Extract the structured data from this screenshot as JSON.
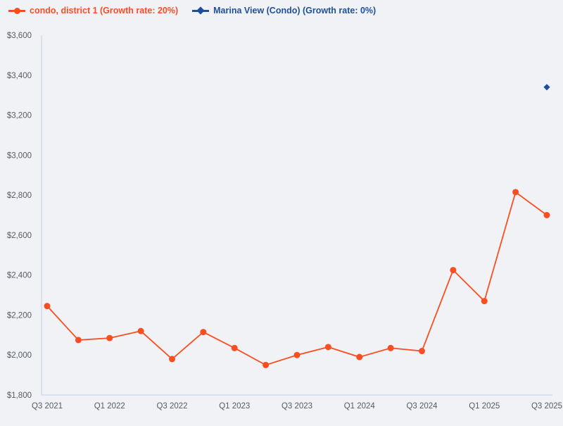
{
  "page": {
    "background_color": "#f0f2f5"
  },
  "legend": {
    "items": [
      {
        "label": "condo, district 1 (Growth rate: 20%)",
        "color": "#f94e22",
        "marker": "circle"
      },
      {
        "label": "Marina View (Condo) (Growth rate: 0%)",
        "color": "#1e4f9c",
        "marker": "diamond"
      }
    ]
  },
  "chart_data": {
    "type": "line",
    "x": [
      "Q3 2021",
      "Q4 2021",
      "Q1 2022",
      "Q2 2022",
      "Q3 2022",
      "Q4 2022",
      "Q1 2023",
      "Q2 2023",
      "Q3 2023",
      "Q4 2023",
      "Q1 2024",
      "Q2 2024",
      "Q3 2024",
      "Q4 2024",
      "Q1 2025",
      "Q2 2025",
      "Q3 2025"
    ],
    "x_tick_labels": [
      "Q3 2021",
      "Q1 2022",
      "Q3 2022",
      "Q1 2023",
      "Q3 2023",
      "Q1 2024",
      "Q3 2024",
      "Q1 2025",
      "Q3 2025"
    ],
    "x_tick_every": 2,
    "series": [
      {
        "name": "condo, district 1",
        "growth_rate": "20%",
        "color": "#f94e22",
        "marker": "circle",
        "values": [
          2245,
          2075,
          2085,
          2120,
          1980,
          2115,
          2035,
          1950,
          2000,
          2040,
          1990,
          2035,
          2020,
          2425,
          2270,
          2815,
          2700
        ]
      },
      {
        "name": "Marina View (Condo)",
        "growth_rate": "0%",
        "color": "#1e4f9c",
        "marker": "diamond",
        "values": [
          null,
          null,
          null,
          null,
          null,
          null,
          null,
          null,
          null,
          null,
          null,
          null,
          null,
          null,
          null,
          null,
          3340
        ]
      }
    ],
    "ylim": [
      1800,
      3600
    ],
    "y_tick_values": [
      1800,
      2000,
      2200,
      2400,
      2600,
      2800,
      3000,
      3200,
      3400,
      3600
    ],
    "y_ticks": [
      "$1,800",
      "$2,000",
      "$2,200",
      "$2,400",
      "$2,600",
      "$2,800",
      "$3,000",
      "$3,200",
      "$3,400",
      "$3,600"
    ],
    "grid": false,
    "legend_position": "top-left",
    "axis_color": "#c3cfe3"
  }
}
